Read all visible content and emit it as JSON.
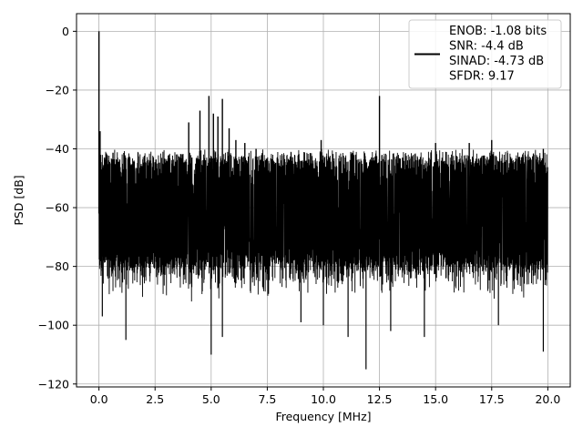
{
  "chart_data": {
    "type": "line",
    "xlabel": "Frequency [MHz]",
    "ylabel": "PSD [dB]",
    "xlim": [
      -1.0,
      21.0
    ],
    "ylim": [
      -121,
      6
    ],
    "xticks": [
      0.0,
      2.5,
      5.0,
      7.5,
      10.0,
      12.5,
      15.0,
      17.5,
      20.0
    ],
    "xtick_labels": [
      "0.0",
      "2.5",
      "5.0",
      "7.5",
      "10.0",
      "12.5",
      "15.0",
      "17.5",
      "20.0"
    ],
    "yticks": [
      0,
      -20,
      -40,
      -60,
      -80,
      -100,
      -120
    ],
    "ytick_labels": [
      "0",
      "−20",
      "−40",
      "−60",
      "−80",
      "−100",
      "−120"
    ],
    "grid": true,
    "legend_position": "top-right",
    "series": [
      {
        "name": "ENOB: -1.08 bits\nSNR: -4.4 dB\nSINAD: -4.73 dB\nSFDR: 9.17",
        "color": "#000000",
        "noise_floor_db": -62,
        "noise_band_db": [
          -80,
          -42
        ],
        "frequency_range_mhz": [
          0.0,
          20.0
        ],
        "peaks": [
          {
            "x": 0.0,
            "y": 0
          },
          {
            "x": 0.05,
            "y": -34
          },
          {
            "x": 4.0,
            "y": -31
          },
          {
            "x": 4.5,
            "y": -27
          },
          {
            "x": 4.9,
            "y": -22
          },
          {
            "x": 5.1,
            "y": -28
          },
          {
            "x": 5.3,
            "y": -29
          },
          {
            "x": 5.5,
            "y": -23
          },
          {
            "x": 5.8,
            "y": -33
          },
          {
            "x": 6.1,
            "y": -37
          },
          {
            "x": 6.5,
            "y": -38
          },
          {
            "x": 7.0,
            "y": -40
          },
          {
            "x": 9.9,
            "y": -37
          },
          {
            "x": 12.5,
            "y": -22
          },
          {
            "x": 15.0,
            "y": -38
          },
          {
            "x": 16.5,
            "y": -38
          },
          {
            "x": 17.5,
            "y": -37
          },
          {
            "x": 19.8,
            "y": -40
          }
        ],
        "troughs": [
          {
            "x": 0.15,
            "y": -97
          },
          {
            "x": 1.2,
            "y": -105
          },
          {
            "x": 5.0,
            "y": -110
          },
          {
            "x": 5.5,
            "y": -104
          },
          {
            "x": 9.0,
            "y": -99
          },
          {
            "x": 10.0,
            "y": -100
          },
          {
            "x": 11.1,
            "y": -104
          },
          {
            "x": 11.9,
            "y": -115
          },
          {
            "x": 13.0,
            "y": -102
          },
          {
            "x": 14.5,
            "y": -104
          },
          {
            "x": 17.8,
            "y": -100
          },
          {
            "x": 19.8,
            "y": -109
          }
        ]
      }
    ]
  }
}
